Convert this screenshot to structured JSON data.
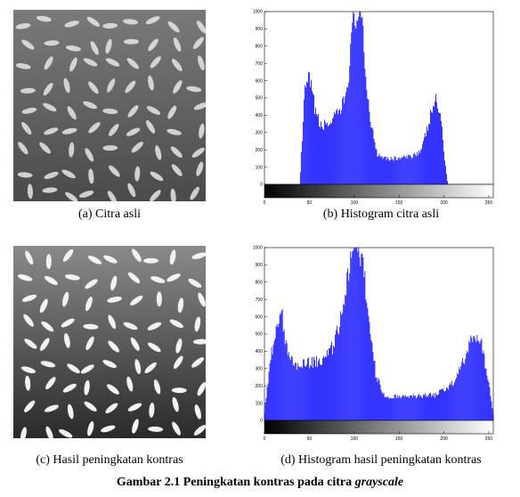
{
  "captions": {
    "a": "(a) Citra asli",
    "b": "(b) Histogram citra asli",
    "c": "(c) Hasil peningkatan kontras",
    "d": "(d) Histogram hasil peningkatan kontras"
  },
  "figure_caption": {
    "prefix": "Gambar 2.1 Peningkatan kontras pada citra ",
    "italic": "grayscale"
  },
  "colors": {
    "bars": "#0000ff",
    "image_background": "#6a6a6a",
    "grain": "#e6e6e6"
  },
  "chart_data": [
    {
      "type": "bar",
      "xlim": [
        0,
        255
      ],
      "ylim": [
        0,
        1000
      ],
      "x_ticks": [
        0,
        50,
        100,
        150,
        200,
        250
      ],
      "y_ticks": [
        0,
        100,
        200,
        300,
        400,
        500,
        600,
        700,
        800,
        900,
        1000
      ],
      "colorbar": "grayscale gradient 0-255 below x-axis",
      "peaks": [
        [
          40,
          80
        ],
        [
          45,
          550
        ],
        [
          50,
          620
        ],
        [
          55,
          480
        ],
        [
          62,
          340
        ],
        [
          75,
          370
        ],
        [
          85,
          430
        ],
        [
          92,
          560
        ],
        [
          96,
          780
        ],
        [
          100,
          1000
        ],
        [
          108,
          1000
        ],
        [
          112,
          700
        ],
        [
          118,
          380
        ],
        [
          126,
          180
        ],
        [
          140,
          150
        ],
        [
          160,
          160
        ],
        [
          175,
          200
        ],
        [
          184,
          380
        ],
        [
          190,
          500
        ],
        [
          196,
          420
        ],
        [
          200,
          200
        ],
        [
          204,
          20
        ]
      ]
    },
    {
      "type": "bar",
      "xlim": [
        0,
        255
      ],
      "ylim": [
        0,
        1000
      ],
      "x_ticks": [
        0,
        50,
        100,
        150,
        200,
        250
      ],
      "y_ticks": [
        0,
        100,
        200,
        300,
        400,
        500,
        600,
        700,
        800,
        900,
        1000
      ],
      "colorbar": "grayscale gradient 0-255 below x-axis",
      "peaks": [
        [
          0,
          50
        ],
        [
          8,
          400
        ],
        [
          14,
          540
        ],
        [
          20,
          620
        ],
        [
          25,
          420
        ],
        [
          35,
          330
        ],
        [
          50,
          340
        ],
        [
          68,
          360
        ],
        [
          78,
          450
        ],
        [
          88,
          650
        ],
        [
          94,
          900
        ],
        [
          98,
          1000
        ],
        [
          108,
          1000
        ],
        [
          114,
          700
        ],
        [
          124,
          280
        ],
        [
          134,
          140
        ],
        [
          155,
          140
        ],
        [
          190,
          150
        ],
        [
          210,
          220
        ],
        [
          224,
          380
        ],
        [
          234,
          510
        ],
        [
          242,
          440
        ],
        [
          250,
          220
        ],
        [
          255,
          40
        ]
      ]
    }
  ]
}
